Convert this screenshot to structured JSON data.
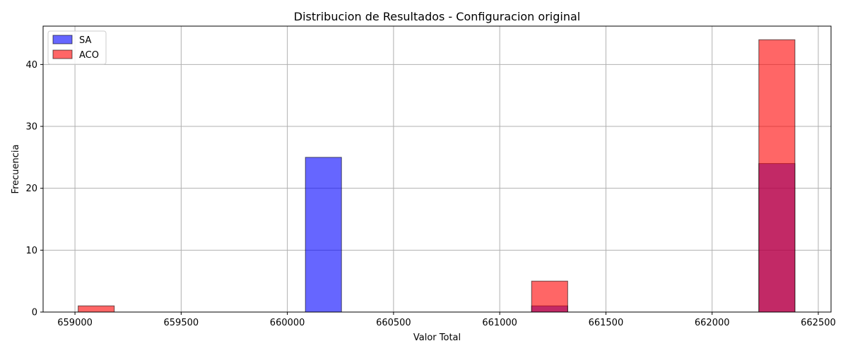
{
  "chart_data": {
    "type": "bar",
    "title": "Distribucion de Resultados - Configuracion original",
    "xlabel": "Valor Total",
    "ylabel": "Frecuencia",
    "xlim": [
      658850,
      662560
    ],
    "ylim": [
      0,
      46.2
    ],
    "xticks": [
      659000,
      659500,
      660000,
      660500,
      661000,
      661500,
      662000,
      662500
    ],
    "yticks": [
      0,
      10,
      20,
      30,
      40
    ],
    "grid": true,
    "legend_position": "top-left",
    "series": [
      {
        "name": "SA",
        "color": "#0000ff",
        "opacity": 0.6,
        "bins": [
          {
            "x0": 660085,
            "x1": 660255,
            "count": 25
          },
          {
            "x0": 661150,
            "x1": 661320,
            "count": 1
          },
          {
            "x0": 662220,
            "x1": 662390,
            "count": 24
          }
        ]
      },
      {
        "name": "ACO",
        "color": "#ff0000",
        "opacity": 0.6,
        "bins": [
          {
            "x0": 659015,
            "x1": 659185,
            "count": 1
          },
          {
            "x0": 661150,
            "x1": 661320,
            "count": 5
          },
          {
            "x0": 662220,
            "x1": 662390,
            "count": 44
          }
        ]
      }
    ]
  }
}
